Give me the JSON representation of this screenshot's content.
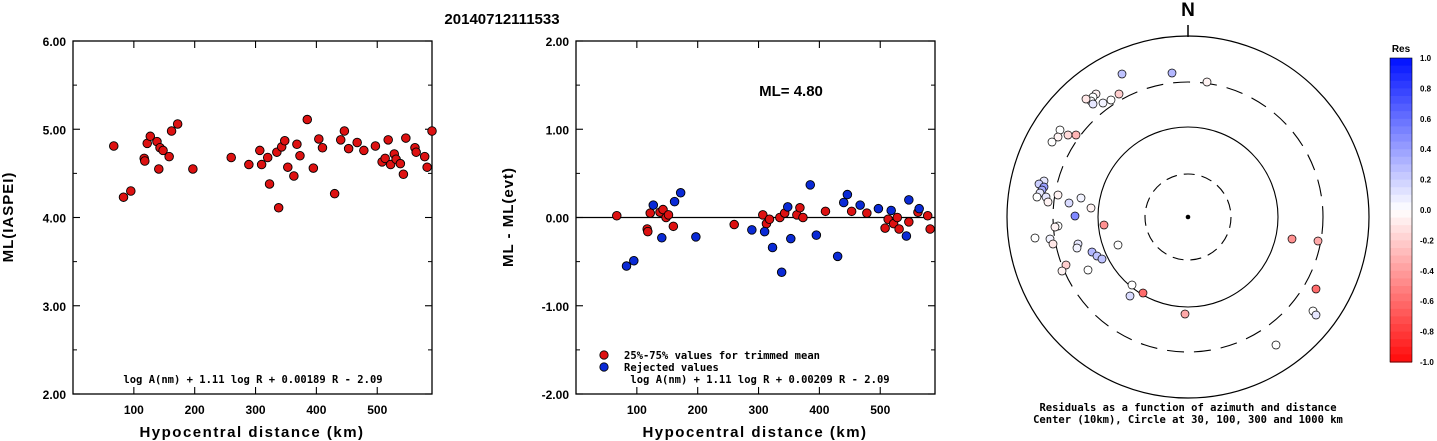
{
  "title": "20140712111533",
  "chart_data": [
    {
      "type": "scatter",
      "name_id": "ml-vs-distance",
      "xlabel": "Hypocentral distance (km)",
      "ylabel": "ML(IASPEI)",
      "xlim": [
        0,
        590
      ],
      "ylim": [
        2.0,
        6.0
      ],
      "xticks": [
        "100",
        "200",
        "300",
        "400",
        "500"
      ],
      "xtick_values": [
        100,
        200,
        300,
        400,
        500
      ],
      "yticks": [
        "2.00",
        "3.00",
        "4.00",
        "5.00",
        "6.00"
      ],
      "ytick_values": [
        2,
        3,
        4,
        5,
        6
      ],
      "formula": "log A(nm) + 1.11 log R + 0.00189 R - 2.09",
      "point_color": "#dd1111",
      "points": [
        [
          67,
          4.81
        ],
        [
          83,
          4.23
        ],
        [
          95,
          4.3
        ],
        [
          117,
          4.67
        ],
        [
          118,
          4.64
        ],
        [
          122,
          4.84
        ],
        [
          127,
          4.92
        ],
        [
          138,
          4.86
        ],
        [
          141,
          4.55
        ],
        [
          143,
          4.79
        ],
        [
          148,
          4.76
        ],
        [
          158,
          4.69
        ],
        [
          162,
          4.98
        ],
        [
          172,
          5.06
        ],
        [
          197,
          4.55
        ],
        [
          260,
          4.68
        ],
        [
          289,
          4.6
        ],
        [
          307,
          4.76
        ],
        [
          310,
          4.6
        ],
        [
          320,
          4.68
        ],
        [
          323,
          4.38
        ],
        [
          335,
          4.74
        ],
        [
          338,
          4.11
        ],
        [
          343,
          4.8
        ],
        [
          348,
          4.87
        ],
        [
          353,
          4.57
        ],
        [
          363,
          4.47
        ],
        [
          368,
          4.83
        ],
        [
          373,
          4.7
        ],
        [
          385,
          5.11
        ],
        [
          395,
          4.56
        ],
        [
          404,
          4.89
        ],
        [
          410,
          4.79
        ],
        [
          430,
          4.27
        ],
        [
          440,
          4.88
        ],
        [
          446,
          4.98
        ],
        [
          453,
          4.78
        ],
        [
          467,
          4.85
        ],
        [
          478,
          4.76
        ],
        [
          497,
          4.81
        ],
        [
          508,
          4.63
        ],
        [
          513,
          4.67
        ],
        [
          518,
          4.88
        ],
        [
          522,
          4.6
        ],
        [
          528,
          4.72
        ],
        [
          531,
          4.66
        ],
        [
          538,
          4.61
        ],
        [
          543,
          4.49
        ],
        [
          547,
          4.9
        ],
        [
          562,
          4.79
        ],
        [
          564,
          4.74
        ],
        [
          578,
          4.69
        ],
        [
          582,
          4.57
        ],
        [
          591,
          4.98
        ]
      ]
    },
    {
      "type": "scatter",
      "name_id": "residual-vs-distance",
      "xlabel": "Hypocentral distance (km)",
      "ylabel": "ML - ML(evt)",
      "xlim": [
        0,
        590
      ],
      "ylim": [
        -2.0,
        2.0
      ],
      "xticks": [
        "100",
        "200",
        "300",
        "400",
        "500"
      ],
      "xtick_values": [
        100,
        200,
        300,
        400,
        500
      ],
      "yticks": [
        "-2.00",
        "-1.00",
        "0.00",
        "1.00",
        "2.00"
      ],
      "ytick_values": [
        -2,
        -1,
        0,
        1,
        2
      ],
      "annotation": "ML= 4.80",
      "formula": "log A(nm) + 1.11 log R + 0.00209 R - 2.09",
      "legend": [
        {
          "label": "25%-75% values for trimmed mean",
          "color": "#dd1111"
        },
        {
          "label": "Rejected values",
          "color": "#0a2ad6"
        }
      ],
      "trimmed_points": [
        [
          67,
          0.02
        ],
        [
          117,
          -0.13
        ],
        [
          118,
          -0.16
        ],
        [
          122,
          0.05
        ],
        [
          138,
          0.06
        ],
        [
          143,
          0.09
        ],
        [
          148,
          0.0
        ],
        [
          152,
          0.03
        ],
        [
          160,
          -0.1
        ],
        [
          260,
          -0.08
        ],
        [
          307,
          0.03
        ],
        [
          313,
          -0.07
        ],
        [
          318,
          -0.02
        ],
        [
          335,
          0.0
        ],
        [
          343,
          0.05
        ],
        [
          363,
          0.03
        ],
        [
          368,
          0.11
        ],
        [
          373,
          0.0
        ],
        [
          410,
          0.07
        ],
        [
          453,
          0.07
        ],
        [
          478,
          0.05
        ],
        [
          508,
          -0.12
        ],
        [
          513,
          -0.02
        ],
        [
          522,
          -0.07
        ],
        [
          528,
          0.0
        ],
        [
          531,
          -0.13
        ],
        [
          547,
          -0.05
        ],
        [
          562,
          0.06
        ],
        [
          578,
          0.02
        ],
        [
          582,
          -0.13
        ]
      ],
      "rejected_points": [
        [
          83,
          -0.55
        ],
        [
          95,
          -0.49
        ],
        [
          127,
          0.14
        ],
        [
          141,
          -0.23
        ],
        [
          162,
          0.18
        ],
        [
          172,
          0.28
        ],
        [
          197,
          -0.22
        ],
        [
          289,
          -0.14
        ],
        [
          310,
          -0.16
        ],
        [
          323,
          -0.34
        ],
        [
          338,
          -0.62
        ],
        [
          348,
          0.12
        ],
        [
          353,
          -0.24
        ],
        [
          385,
          0.37
        ],
        [
          395,
          -0.2
        ],
        [
          430,
          -0.44
        ],
        [
          440,
          0.17
        ],
        [
          446,
          0.26
        ],
        [
          467,
          0.14
        ],
        [
          497,
          0.1
        ],
        [
          518,
          0.08
        ],
        [
          543,
          -0.21
        ],
        [
          547,
          0.2
        ],
        [
          564,
          0.1
        ]
      ]
    },
    {
      "type": "polar-scatter",
      "name_id": "azimuth-residuals",
      "north_label": "N",
      "caption_line1": "Residuals as a function of azimuth and distance",
      "caption_line2": "Center (10km), Circle at 30, 100, 300 and 1000 km",
      "colorbar_title": "Res",
      "colorbar_ticks": [
        "1.0",
        "0.8",
        "0.6",
        "0.4",
        "0.2",
        "0.0",
        "-0.2",
        "-0.4",
        "-0.6",
        "-0.8",
        "-1.0"
      ],
      "colorbar_values": [
        1.0,
        0.8,
        0.6,
        0.4,
        0.2,
        0.0,
        -0.2,
        -0.4,
        -0.6,
        -0.8,
        -1.0
      ],
      "positive_color": "#0010ff",
      "negative_color": "#ff0a0a",
      "points": [
        {
          "dx": -66,
          "dy": -143,
          "res": 0.25
        },
        {
          "dx": -16,
          "dy": -144,
          "res": 0.3
        },
        {
          "dx": 19,
          "dy": -135,
          "res": -0.05
        },
        {
          "dx": -92,
          "dy": -123,
          "res": -0.05
        },
        {
          "dx": -95,
          "dy": -120,
          "res": 0.0
        },
        {
          "dx": -97,
          "dy": -116,
          "res": 0.0
        },
        {
          "dx": -95,
          "dy": -113,
          "res": 0.1
        },
        {
          "dx": -85,
          "dy": -114,
          "res": 0.05
        },
        {
          "dx": -77,
          "dy": -117,
          "res": 0.0
        },
        {
          "dx": -69,
          "dy": -123,
          "res": -0.2
        },
        {
          "dx": -102,
          "dy": -118,
          "res": -0.1
        },
        {
          "dx": -128,
          "dy": -87,
          "res": 0.0
        },
        {
          "dx": -120,
          "dy": -82,
          "res": -0.15
        },
        {
          "dx": -112,
          "dy": -82,
          "res": -0.3
        },
        {
          "dx": -130,
          "dy": -80,
          "res": -0.05
        },
        {
          "dx": -136,
          "dy": -75,
          "res": 0.0
        },
        {
          "dx": -144,
          "dy": -36,
          "res": 0.1
        },
        {
          "dx": -149,
          "dy": -33,
          "res": 0.2
        },
        {
          "dx": -144,
          "dy": -30,
          "res": 0.4
        },
        {
          "dx": -146,
          "dy": -27,
          "res": 0.35
        },
        {
          "dx": -148,
          "dy": -24,
          "res": 0.1
        },
        {
          "dx": -151,
          "dy": -20,
          "res": 0.0
        },
        {
          "dx": -142,
          "dy": -20,
          "res": 0.1
        },
        {
          "dx": -130,
          "dy": -22,
          "res": -0.05
        },
        {
          "dx": -140,
          "dy": -15,
          "res": -0.05
        },
        {
          "dx": -107,
          "dy": -19,
          "res": 0.05
        },
        {
          "dx": -119,
          "dy": -14,
          "res": 0.15
        },
        {
          "dx": -113,
          "dy": -1,
          "res": 0.5
        },
        {
          "dx": -97,
          "dy": -9,
          "res": -0.05
        },
        {
          "dx": -84,
          "dy": 8,
          "res": -0.45
        },
        {
          "dx": -130,
          "dy": 9,
          "res": 0.0
        },
        {
          "dx": -133,
          "dy": 10,
          "res": -0.05
        },
        {
          "dx": -153,
          "dy": 21,
          "res": 0.0
        },
        {
          "dx": -138,
          "dy": 22,
          "res": 0.05
        },
        {
          "dx": -135,
          "dy": 27,
          "res": -0.1
        },
        {
          "dx": -110,
          "dy": 27,
          "res": 0.1
        },
        {
          "dx": -111,
          "dy": 31,
          "res": 0.05
        },
        {
          "dx": -96,
          "dy": 35,
          "res": 0.3
        },
        {
          "dx": -91,
          "dy": 39,
          "res": 0.25
        },
        {
          "dx": -86,
          "dy": 42,
          "res": 0.25
        },
        {
          "dx": -70,
          "dy": 28,
          "res": 0.0
        },
        {
          "dx": -122,
          "dy": 48,
          "res": -0.2
        },
        {
          "dx": -126,
          "dy": 54,
          "res": -0.05
        },
        {
          "dx": -100,
          "dy": 53,
          "res": 0.0
        },
        {
          "dx": -56,
          "dy": 68,
          "res": 0.0
        },
        {
          "dx": -58,
          "dy": 79,
          "res": 0.15
        },
        {
          "dx": -45,
          "dy": 76,
          "res": -0.6
        },
        {
          "dx": -3,
          "dy": 97,
          "res": -0.35
        },
        {
          "dx": 104,
          "dy": 22,
          "res": -0.45
        },
        {
          "dx": 130,
          "dy": 24,
          "res": -0.35
        },
        {
          "dx": 128,
          "dy": 72,
          "res": -0.6
        },
        {
          "dx": 125,
          "dy": 94,
          "res": 0.0
        },
        {
          "dx": 128,
          "dy": 98,
          "res": 0.1
        },
        {
          "dx": 88,
          "dy": 128,
          "res": 0.0
        }
      ]
    }
  ]
}
